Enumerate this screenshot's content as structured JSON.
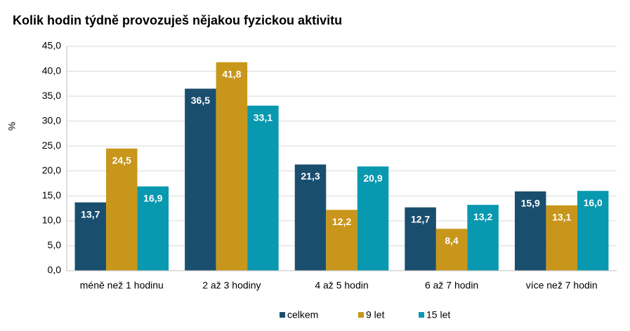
{
  "chart_data": {
    "type": "bar",
    "title": "Kolik hodin týdně provozuješ nějakou fyzickou aktivitu",
    "y_label": "%",
    "categories": [
      "méně než 1 hodinu",
      "2 až 3 hodiny",
      "4 až 5 hodin",
      "6 až 7 hodin",
      "více než 7 hodin"
    ],
    "series": [
      {
        "name": "celkem",
        "color": "#1a4e6e",
        "values": [
          13.7,
          36.5,
          21.3,
          12.7,
          15.9
        ],
        "value_labels": [
          "13,7",
          "36,5",
          "21,3",
          "12,7",
          "15,9"
        ]
      },
      {
        "name": "9 let",
        "color": "#c8961a",
        "values": [
          24.5,
          41.8,
          12.2,
          8.4,
          13.1
        ],
        "value_labels": [
          "24,5",
          "41,8",
          "12,2",
          "8,4",
          "13,1"
        ]
      },
      {
        "name": "15 let",
        "color": "#0898b0",
        "values": [
          16.9,
          33.1,
          20.9,
          13.2,
          16.0
        ],
        "value_labels": [
          "16,9",
          "33,1",
          "20,9",
          "13,2",
          "16,0"
        ]
      }
    ],
    "ylim": [
      0,
      45
    ],
    "yticks": [
      {
        "value": 0,
        "label": "0,0"
      },
      {
        "value": 5,
        "label": "5,0"
      },
      {
        "value": 10,
        "label": "10,0"
      },
      {
        "value": 15,
        "label": "15,0"
      },
      {
        "value": 20,
        "label": "20,0"
      },
      {
        "value": 25,
        "label": "25,0"
      },
      {
        "value": 30,
        "label": "30,0"
      },
      {
        "value": 35,
        "label": "35,0"
      },
      {
        "value": 40,
        "label": "40,0"
      },
      {
        "value": 45,
        "label": "45,0"
      }
    ],
    "grid": true,
    "legend": "bottom"
  }
}
